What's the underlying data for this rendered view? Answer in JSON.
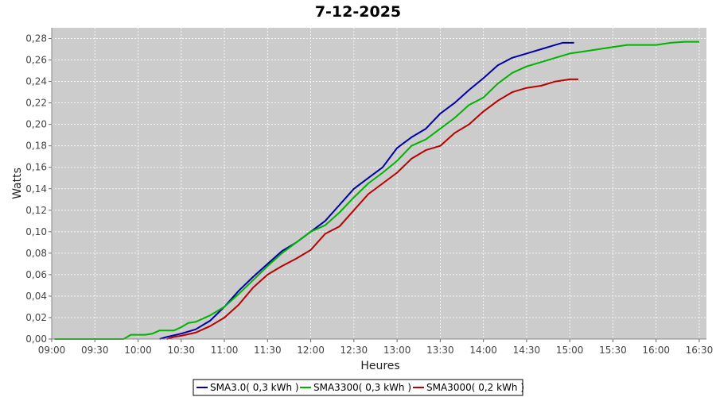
{
  "chart_data": {
    "type": "line",
    "title": "7-12-2025",
    "xlabel": "Heures",
    "ylabel": "Watts",
    "xlim": [
      "09:00",
      "16:35"
    ],
    "ylim": [
      0,
      0.29
    ],
    "x_ticks": [
      "09:00",
      "09:30",
      "10:00",
      "10:30",
      "11:00",
      "11:30",
      "12:00",
      "12:30",
      "13:00",
      "13:30",
      "14:00",
      "14:30",
      "15:00",
      "15:30",
      "16:00",
      "16:30"
    ],
    "y_ticks": [
      "0,00",
      "0,02",
      "0,04",
      "0,06",
      "0,08",
      "0,10",
      "0,12",
      "0,14",
      "0,16",
      "0,18",
      "0,20",
      "0,22",
      "0,24",
      "0,26",
      "0,28"
    ],
    "grid": true,
    "background": "#cccccc",
    "legend_position": "bottom-center",
    "series": [
      {
        "name": "SMA3.0( 0,3 kWh )",
        "color": "#0000aa",
        "points": [
          [
            "10:15",
            0.0
          ],
          [
            "10:20",
            0.002
          ],
          [
            "10:30",
            0.005
          ],
          [
            "10:40",
            0.009
          ],
          [
            "10:50",
            0.017
          ],
          [
            "11:00",
            0.03
          ],
          [
            "11:10",
            0.045
          ],
          [
            "11:20",
            0.058
          ],
          [
            "11:30",
            0.07
          ],
          [
            "11:40",
            0.082
          ],
          [
            "11:50",
            0.09
          ],
          [
            "12:00",
            0.1
          ],
          [
            "12:10",
            0.11
          ],
          [
            "12:20",
            0.125
          ],
          [
            "12:30",
            0.14
          ],
          [
            "12:40",
            0.15
          ],
          [
            "12:50",
            0.16
          ],
          [
            "13:00",
            0.178
          ],
          [
            "13:10",
            0.188
          ],
          [
            "13:20",
            0.196
          ],
          [
            "13:30",
            0.21
          ],
          [
            "13:40",
            0.22
          ],
          [
            "13:50",
            0.232
          ],
          [
            "14:00",
            0.243
          ],
          [
            "14:10",
            0.255
          ],
          [
            "14:20",
            0.262
          ],
          [
            "14:30",
            0.266
          ],
          [
            "14:40",
            0.27
          ],
          [
            "14:50",
            0.274
          ],
          [
            "14:55",
            0.276
          ],
          [
            "15:03",
            0.276
          ]
        ]
      },
      {
        "name": "SMA3300( 0,3 kWh )",
        "color": "#00b300",
        "points": [
          [
            "09:02",
            0.0
          ],
          [
            "09:30",
            0.0
          ],
          [
            "09:50",
            0.0
          ],
          [
            "09:55",
            0.004
          ],
          [
            "10:05",
            0.004
          ],
          [
            "10:10",
            0.005
          ],
          [
            "10:15",
            0.008
          ],
          [
            "10:25",
            0.008
          ],
          [
            "10:30",
            0.011
          ],
          [
            "10:35",
            0.015
          ],
          [
            "10:40",
            0.016
          ],
          [
            "10:50",
            0.022
          ],
          [
            "11:00",
            0.03
          ],
          [
            "11:10",
            0.042
          ],
          [
            "11:20",
            0.055
          ],
          [
            "11:30",
            0.068
          ],
          [
            "11:40",
            0.08
          ],
          [
            "11:50",
            0.09
          ],
          [
            "12:00",
            0.1
          ],
          [
            "12:10",
            0.106
          ],
          [
            "12:20",
            0.118
          ],
          [
            "12:30",
            0.132
          ],
          [
            "12:40",
            0.145
          ],
          [
            "12:50",
            0.155
          ],
          [
            "13:00",
            0.166
          ],
          [
            "13:10",
            0.18
          ],
          [
            "13:20",
            0.186
          ],
          [
            "13:30",
            0.196
          ],
          [
            "13:40",
            0.206
          ],
          [
            "13:50",
            0.218
          ],
          [
            "14:00",
            0.225
          ],
          [
            "14:10",
            0.238
          ],
          [
            "14:20",
            0.248
          ],
          [
            "14:30",
            0.254
          ],
          [
            "14:40",
            0.258
          ],
          [
            "14:50",
            0.262
          ],
          [
            "15:00",
            0.266
          ],
          [
            "15:10",
            0.268
          ],
          [
            "15:20",
            0.27
          ],
          [
            "15:30",
            0.272
          ],
          [
            "15:40",
            0.274
          ],
          [
            "15:50",
            0.274
          ],
          [
            "16:00",
            0.274
          ],
          [
            "16:10",
            0.276
          ],
          [
            "16:20",
            0.277
          ],
          [
            "16:30",
            0.277
          ]
        ]
      },
      {
        "name": "SMA3000( 0,2 kWh )",
        "color": "#bb0000",
        "points": [
          [
            "10:20",
            0.0
          ],
          [
            "10:25",
            0.002
          ],
          [
            "10:30",
            0.003
          ],
          [
            "10:40",
            0.006
          ],
          [
            "10:50",
            0.012
          ],
          [
            "11:00",
            0.02
          ],
          [
            "11:10",
            0.032
          ],
          [
            "11:20",
            0.048
          ],
          [
            "11:30",
            0.06
          ],
          [
            "11:40",
            0.068
          ],
          [
            "11:50",
            0.075
          ],
          [
            "12:00",
            0.083
          ],
          [
            "12:10",
            0.098
          ],
          [
            "12:20",
            0.105
          ],
          [
            "12:30",
            0.12
          ],
          [
            "12:40",
            0.135
          ],
          [
            "12:50",
            0.145
          ],
          [
            "13:00",
            0.155
          ],
          [
            "13:10",
            0.168
          ],
          [
            "13:20",
            0.176
          ],
          [
            "13:30",
            0.18
          ],
          [
            "13:40",
            0.192
          ],
          [
            "13:50",
            0.2
          ],
          [
            "14:00",
            0.212
          ],
          [
            "14:10",
            0.222
          ],
          [
            "14:20",
            0.23
          ],
          [
            "14:30",
            0.234
          ],
          [
            "14:40",
            0.236
          ],
          [
            "14:50",
            0.24
          ],
          [
            "15:00",
            0.242
          ],
          [
            "15:06",
            0.242
          ]
        ]
      }
    ]
  }
}
